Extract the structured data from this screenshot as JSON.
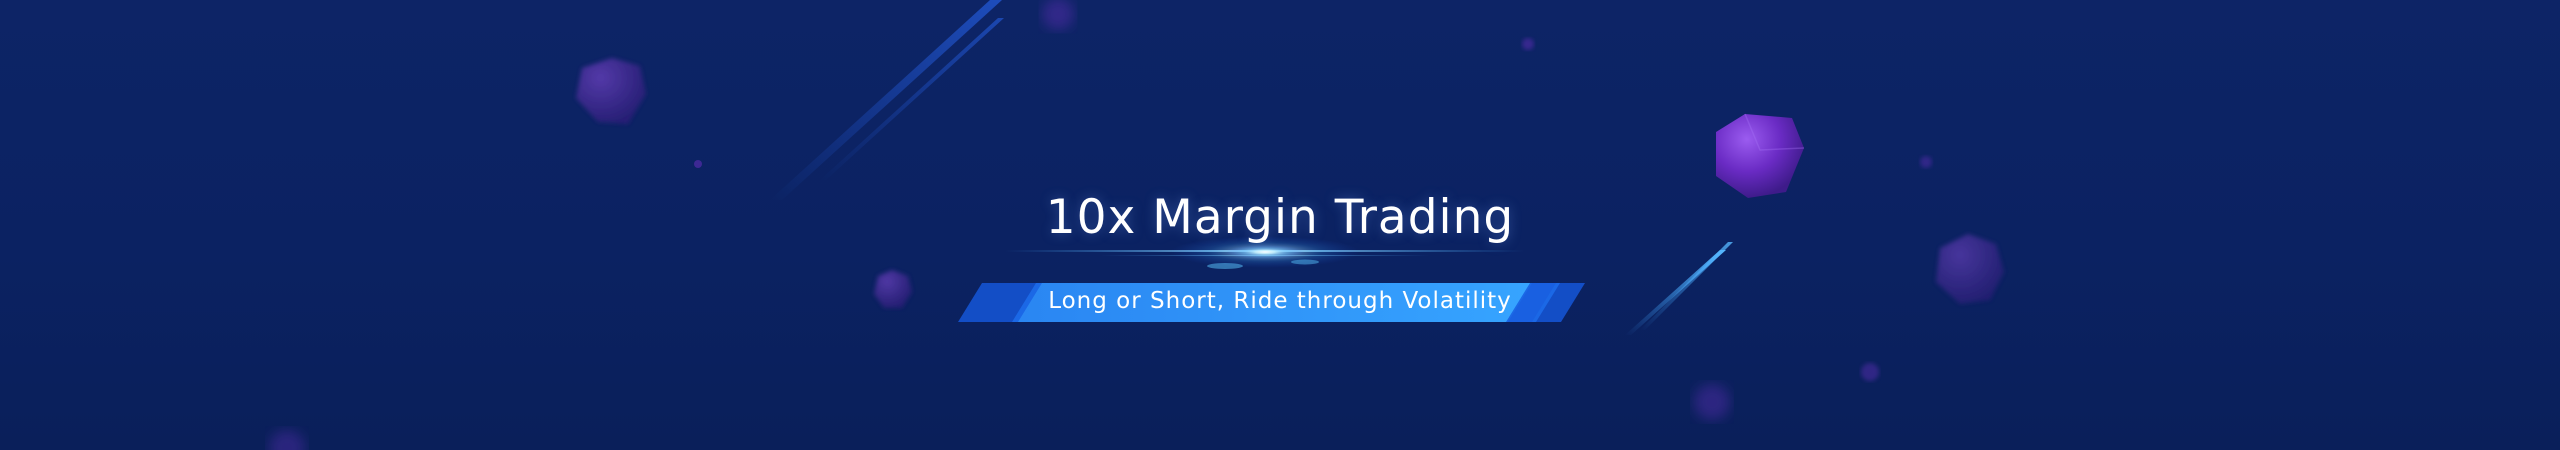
{
  "banner": {
    "title": "10x Margin Trading",
    "subtitle": "Long or Short, Ride through Volatility"
  },
  "colors": {
    "background": "#0b2262",
    "ribbon": "#2a8cf0",
    "ribbon_dark": "#1556d8",
    "orb": "#6a2bc4",
    "glow": "#7fd8ff"
  }
}
